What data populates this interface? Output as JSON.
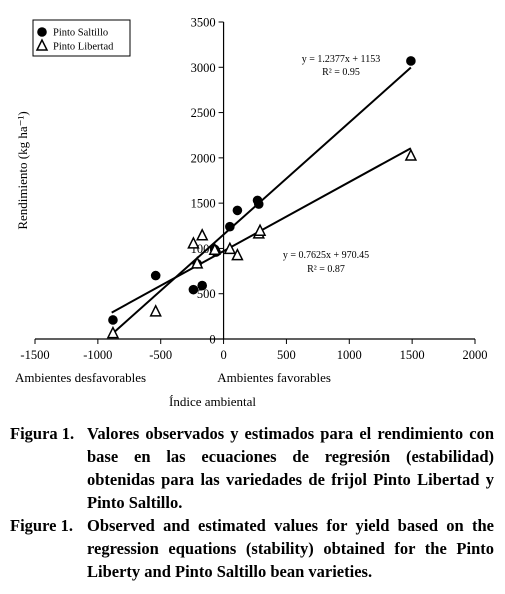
{
  "chart_data": {
    "type": "scatter",
    "title": "",
    "xlabel": "Índice ambiental",
    "ylabel": "Rendimiento (kg ha⁻¹)",
    "xlim": [
      -1500,
      2000
    ],
    "ylim": [
      0,
      3500
    ],
    "xticks": [
      -1500,
      -1000,
      -500,
      0,
      500,
      1000,
      1500,
      2000
    ],
    "yticks": [
      0,
      500,
      1000,
      1500,
      2000,
      2500,
      3000,
      3500
    ],
    "x_annotations": {
      "left": "Ambientes desfavorables",
      "right": "Ambientes favorables"
    },
    "grid": false,
    "legend_position": "top-left",
    "series": [
      {
        "name": "Pinto Saltillo",
        "marker": "filled-circle",
        "color": "#000000",
        "points": [
          [
            -880,
            210
          ],
          [
            -540,
            700
          ],
          [
            -240,
            545
          ],
          [
            -210,
            830
          ],
          [
            -170,
            590
          ],
          [
            -70,
            990
          ],
          [
            -60,
            960
          ],
          [
            50,
            1240
          ],
          [
            110,
            1420
          ],
          [
            270,
            1530
          ],
          [
            280,
            1490
          ],
          [
            1490,
            3070
          ]
        ],
        "fit": {
          "slope": 1.2377,
          "intercept": 1153,
          "x_range": [
            -880,
            1490
          ]
        },
        "equation": "y = 1.2377x + 1153",
        "r2": "R² = 0.95"
      },
      {
        "name": "Pinto Libertad",
        "marker": "open-triangle",
        "color": "#000000",
        "points": [
          [
            -880,
            60
          ],
          [
            -540,
            300
          ],
          [
            -240,
            1050
          ],
          [
            -210,
            830
          ],
          [
            -170,
            1140
          ],
          [
            -70,
            980
          ],
          [
            50,
            990
          ],
          [
            110,
            920
          ],
          [
            280,
            1160
          ],
          [
            290,
            1190
          ],
          [
            1490,
            2020
          ]
        ],
        "fit": {
          "slope": 0.7625,
          "intercept": 970.45,
          "x_range": [
            -890,
            1490
          ]
        },
        "equation": "y = 0.7625x + 970.45",
        "r2": "R² = 0.87"
      }
    ]
  },
  "caption": {
    "es_label": "Figura 1.",
    "es_text": "Valores observados y estimados para el rendimiento con base en las ecuaciones de regresión (estabilidad) obtenidas para las variedades de frijol Pinto Libertad y Pinto Saltillo.",
    "en_label": "Figure 1.",
    "en_text": "Observed and estimated values for yield based on the regression equations (stability) obtained for the Pinto Liberty and Pinto Saltillo bean varieties."
  }
}
